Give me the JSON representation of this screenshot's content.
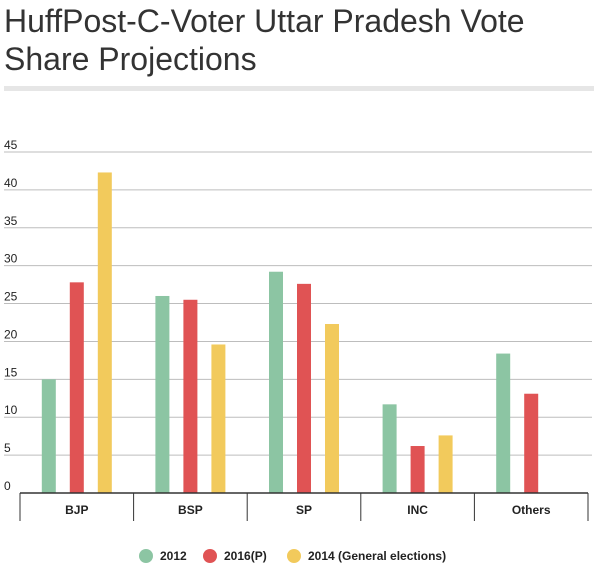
{
  "title": "HuffPost-C-Voter Uttar Pradesh Vote Share Projections",
  "chart_data": {
    "type": "bar",
    "categories": [
      "BJP",
      "BSP",
      "SP",
      "INC",
      "Others"
    ],
    "series": [
      {
        "name": "2012",
        "color": "#8cc5a3",
        "values": [
          15.0,
          26.0,
          29.2,
          11.7,
          18.4
        ]
      },
      {
        "name": "2016(P)",
        "color": "#e05354",
        "values": [
          27.8,
          25.5,
          27.6,
          6.2,
          13.1
        ]
      },
      {
        "name": "2014 (General elections)",
        "color": "#f2ca5c",
        "values": [
          42.3,
          19.6,
          22.3,
          7.6,
          null
        ]
      }
    ],
    "ylim": [
      0,
      45
    ],
    "yticks": [
      0,
      5,
      10,
      15,
      20,
      25,
      30,
      35,
      40,
      45
    ],
    "grid": true,
    "legend_position": "bottom-center"
  }
}
